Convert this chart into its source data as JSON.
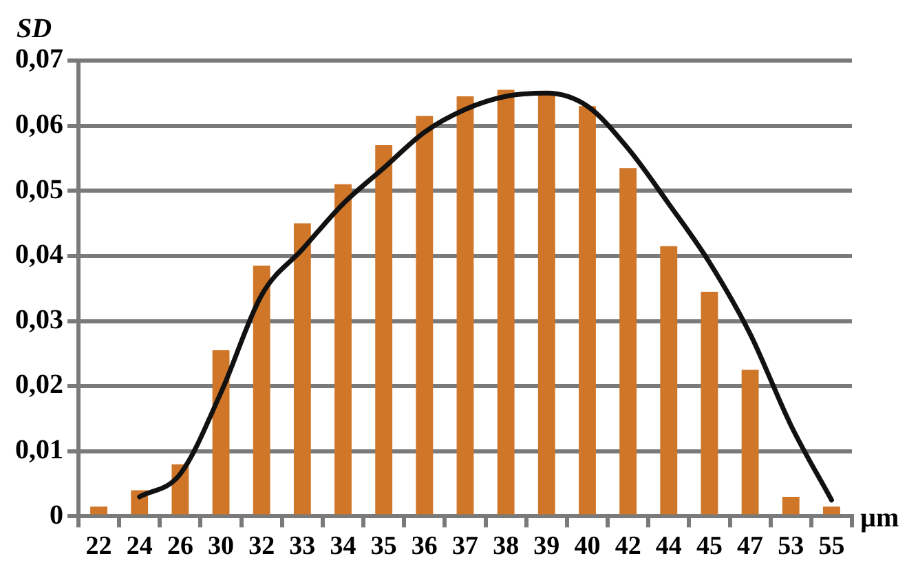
{
  "chart_data": {
    "type": "bar",
    "xlabel": "µm",
    "ylabel": "SD",
    "categories": [
      "22",
      "24",
      "26",
      "30",
      "32",
      "33",
      "34",
      "35",
      "36",
      "37",
      "38",
      "39",
      "40",
      "42",
      "44",
      "45",
      "47",
      "53",
      "55"
    ],
    "series": [
      {
        "color": "#d07628",
        "values": [
          0.0015,
          0.004,
          0.008,
          0.0255,
          0.0385,
          0.045,
          0.051,
          0.057,
          0.0615,
          0.0645,
          0.0655,
          0.065,
          0.063,
          0.0535,
          0.0415,
          0.0345,
          0.0225,
          0.003,
          0.0015
        ]
      },
      {
        "type": "line",
        "color": "#111111",
        "values": [
          null,
          0.003,
          0.0065,
          0.019,
          0.034,
          0.041,
          0.048,
          0.0535,
          0.059,
          0.0625,
          0.0645,
          0.065,
          0.063,
          0.0565,
          0.048,
          0.039,
          0.028,
          0.014,
          0.0025
        ]
      }
    ],
    "ylim": [
      0,
      0.07
    ],
    "yticks": [
      0,
      {
        "value": 0.01,
        "label": "0,01"
      },
      {
        "value": 0.02,
        "label": "0,02"
      },
      {
        "value": 0.03,
        "label": "0,03"
      },
      {
        "value": 0.04,
        "label": "0,04"
      },
      {
        "value": 0.05,
        "label": "0,05"
      },
      {
        "value": 0.06,
        "label": "0,06"
      },
      {
        "value": 0.07,
        "label": "0,07"
      }
    ],
    "grid": "y",
    "legend": false,
    "marker": "none",
    "line_style": "solid"
  }
}
